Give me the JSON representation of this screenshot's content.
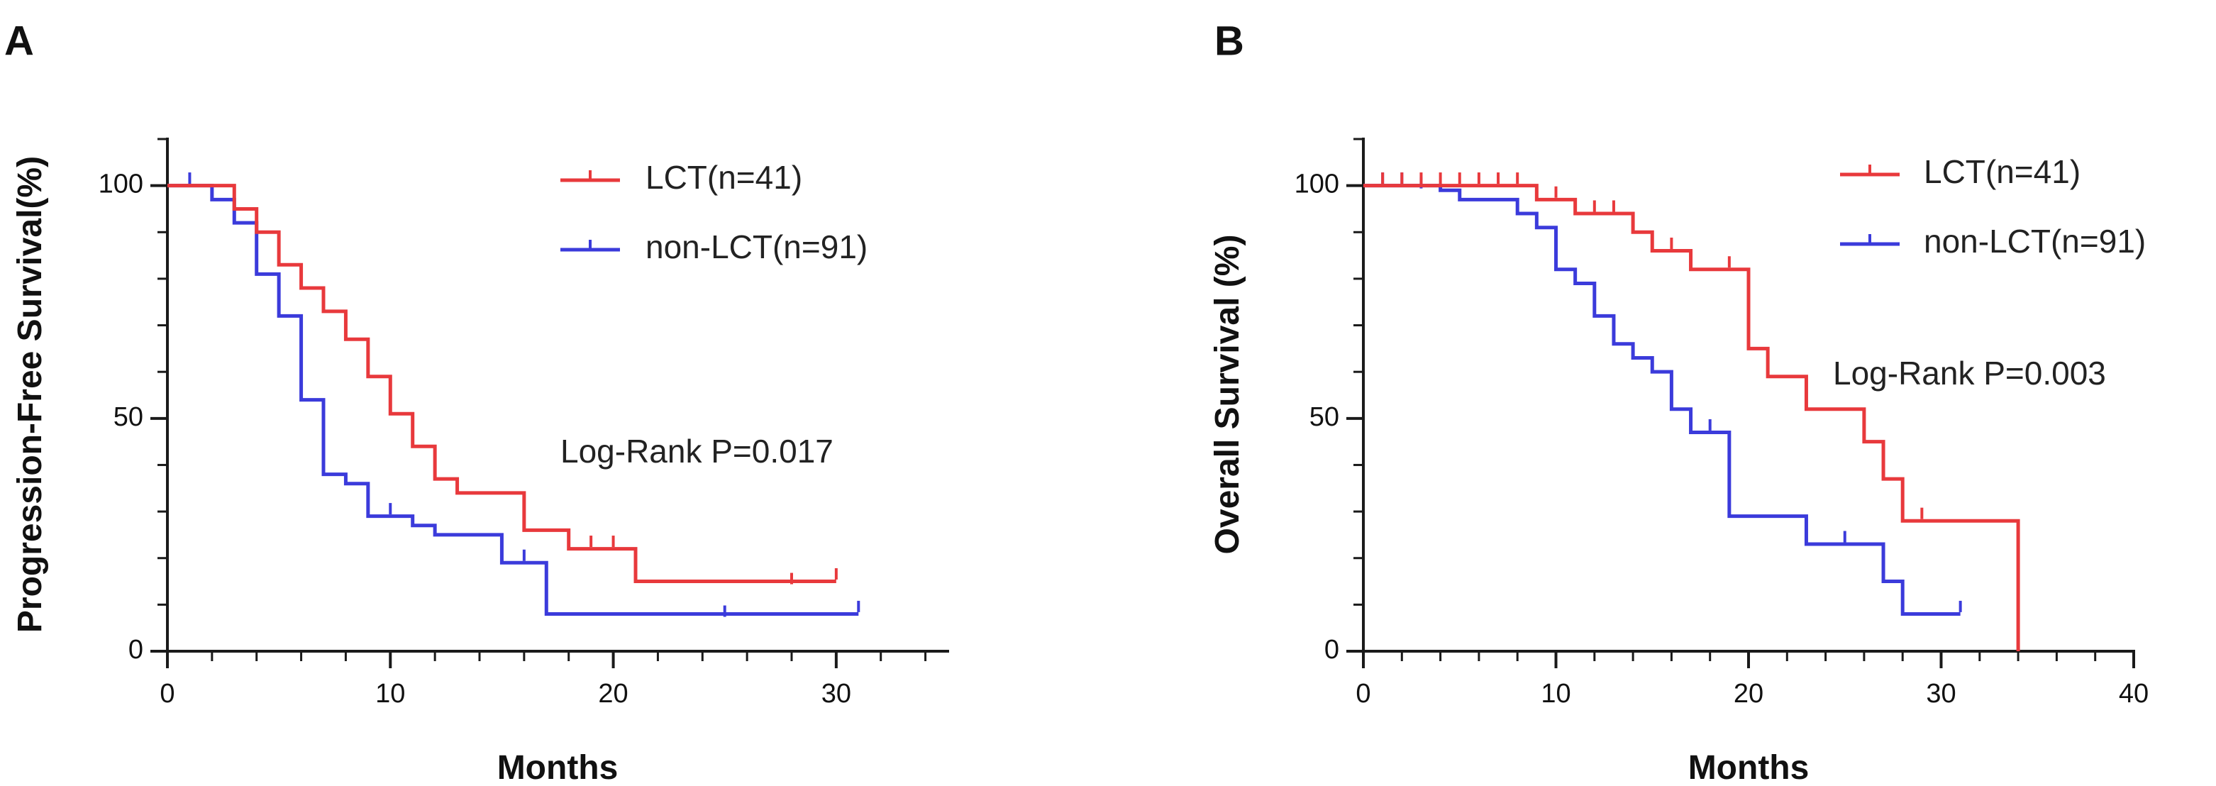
{
  "chart_data": [
    {
      "type": "line",
      "panel": "A",
      "xlabel": "Months",
      "ylabel": "Progression-Free Survival(%)",
      "xlim": [
        0,
        35
      ],
      "ylim": [
        0,
        110
      ],
      "xticks": [
        0,
        10,
        20,
        30
      ],
      "yticks": [
        0,
        50,
        100
      ],
      "xminor_step": 2,
      "yminor_step": 10,
      "annotation": "Log-Rank P=0.017",
      "legend_position": "top-right",
      "series": [
        {
          "name": "LCT(n=41)",
          "color": "#e8393c",
          "steps": [
            [
              0,
              100
            ],
            [
              3,
              95
            ],
            [
              4,
              90
            ],
            [
              5,
              83
            ],
            [
              6,
              78
            ],
            [
              7,
              73
            ],
            [
              8,
              67
            ],
            [
              9,
              59
            ],
            [
              10,
              51
            ],
            [
              11,
              44
            ],
            [
              12,
              37
            ],
            [
              13,
              34
            ],
            [
              16,
              26
            ],
            [
              18,
              22
            ],
            [
              21,
              15
            ],
            [
              30,
              15
            ]
          ],
          "censors": [
            [
              28,
              15
            ],
            [
              30,
              16
            ],
            [
              19,
              23
            ],
            [
              20,
              23
            ]
          ]
        },
        {
          "name": "non-LCT(n=91)",
          "color": "#3b3bdb",
          "steps": [
            [
              0,
              100
            ],
            [
              2,
              97
            ],
            [
              3,
              92
            ],
            [
              4,
              81
            ],
            [
              5,
              72
            ],
            [
              6,
              54
            ],
            [
              7,
              38
            ],
            [
              8,
              36
            ],
            [
              9,
              29
            ],
            [
              11,
              27
            ],
            [
              12,
              25
            ],
            [
              15,
              19
            ],
            [
              17,
              8
            ],
            [
              31,
              8
            ]
          ],
          "censors": [
            [
              1,
              101
            ],
            [
              10,
              30
            ],
            [
              16,
              20
            ],
            [
              25,
              8
            ],
            [
              31,
              9
            ]
          ]
        }
      ]
    },
    {
      "type": "line",
      "panel": "B",
      "xlabel": "Months",
      "ylabel": "Overall Survival (%)",
      "xlim": [
        0,
        40
      ],
      "ylim": [
        0,
        110
      ],
      "xticks": [
        0,
        10,
        20,
        30,
        40
      ],
      "yticks": [
        0,
        50,
        100
      ],
      "xminor_step": 2,
      "yminor_step": 10,
      "annotation": "Log-Rank P=0.003",
      "legend_position": "top-right",
      "series": [
        {
          "name": "LCT(n=41)",
          "color": "#e8393c",
          "steps": [
            [
              0,
              100
            ],
            [
              9,
              97
            ],
            [
              11,
              94
            ],
            [
              14,
              90
            ],
            [
              15,
              86
            ],
            [
              17,
              82
            ],
            [
              20,
              65
            ],
            [
              21,
              59
            ],
            [
              23,
              52
            ],
            [
              26,
              45
            ],
            [
              27,
              37
            ],
            [
              28,
              28
            ],
            [
              34,
              0
            ]
          ],
          "censors": [
            [
              1,
              101
            ],
            [
              2,
              101
            ],
            [
              3,
              101
            ],
            [
              4,
              101
            ],
            [
              5,
              101
            ],
            [
              6,
              101
            ],
            [
              7,
              101
            ],
            [
              8,
              101
            ],
            [
              10,
              98
            ],
            [
              12,
              95
            ],
            [
              13,
              95
            ],
            [
              16,
              87
            ],
            [
              19,
              83
            ],
            [
              29,
              29
            ]
          ]
        },
        {
          "name": "non-LCT(n=91)",
          "color": "#3b3bdb",
          "steps": [
            [
              0,
              100
            ],
            [
              4,
              99
            ],
            [
              5,
              97
            ],
            [
              8,
              94
            ],
            [
              9,
              91
            ],
            [
              10,
              82
            ],
            [
              11,
              79
            ],
            [
              12,
              72
            ],
            [
              13,
              66
            ],
            [
              14,
              63
            ],
            [
              15,
              60
            ],
            [
              16,
              52
            ],
            [
              17,
              47
            ],
            [
              19,
              29
            ],
            [
              23,
              23
            ],
            [
              27,
              15
            ],
            [
              28,
              8
            ],
            [
              31,
              8
            ]
          ],
          "censors": [
            [
              1,
              101
            ],
            [
              2,
              101
            ],
            [
              3,
              100
            ],
            [
              18,
              48
            ],
            [
              25,
              24
            ],
            [
              31,
              9
            ]
          ]
        }
      ]
    }
  ]
}
